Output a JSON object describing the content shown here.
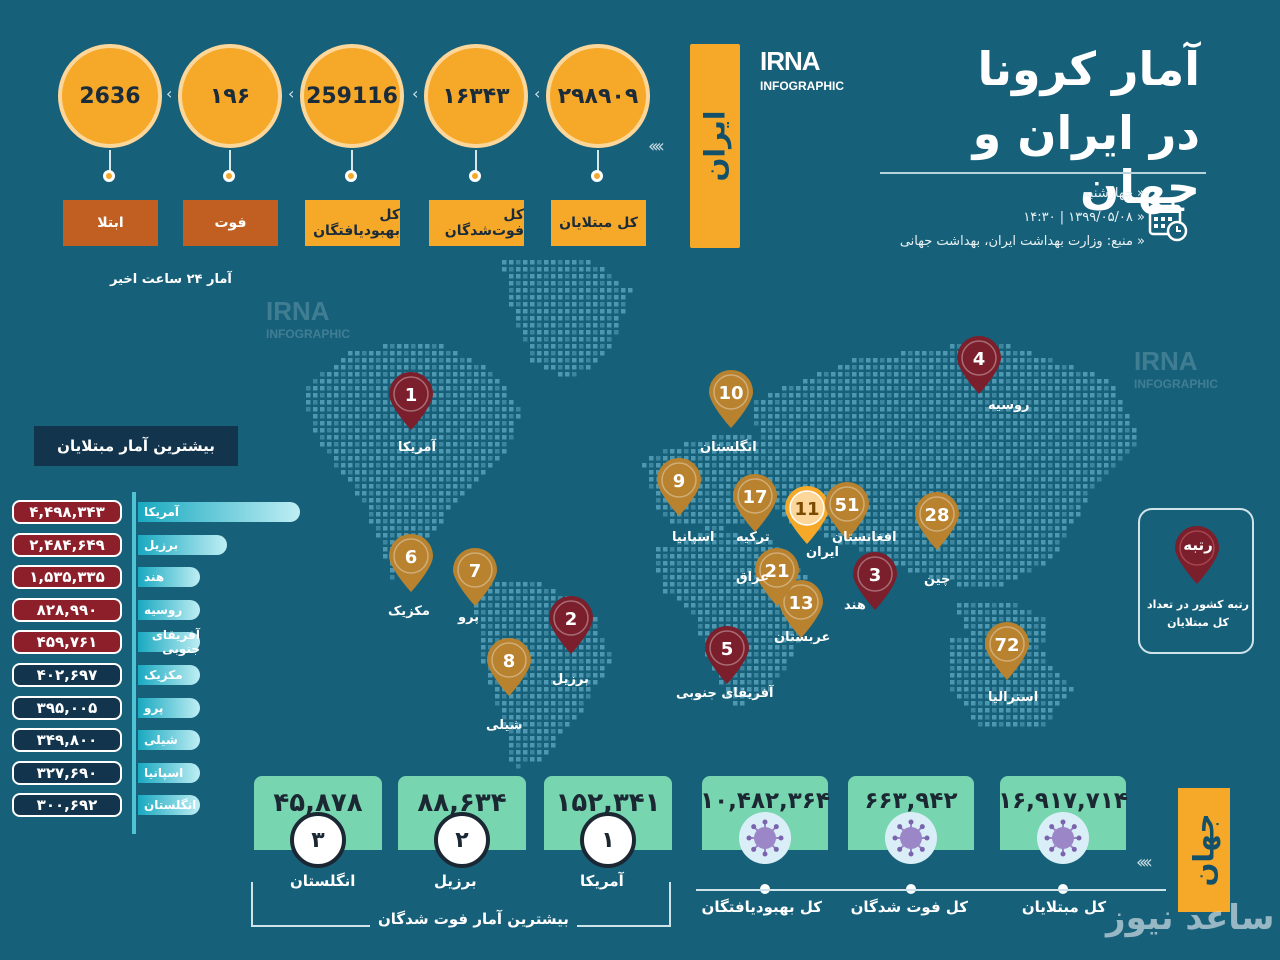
{
  "header": {
    "title_line1": "آمار کرونا",
    "title_line2": "در ایران و جهان",
    "logo": "IRNA",
    "logo_sub": "INFOGRAPHIC",
    "day": "چهارشنبه",
    "datetime": "۱۳۹۹/۰۵/۰۸ | ۱۴:۳۰",
    "source": "منبع: وزارت بهداشت ایران، بهداشت جهانی"
  },
  "iran": {
    "banner": "ایران",
    "stats": [
      {
        "value": "۲۹۸۹۰۹",
        "label": "کل مبتلایان",
        "style": "orange"
      },
      {
        "value": "۱۶۳۴۳",
        "label": "کل فوت‌شدگان",
        "style": "orange"
      },
      {
        "value": "259116",
        "label": "کل بهبودیافتگان",
        "style": "orange"
      },
      {
        "value": "۱۹۶",
        "label": "فوت",
        "style": "brown"
      },
      {
        "value": "2636",
        "label": "ابتلا",
        "style": "brown"
      }
    ],
    "last24": "آمار ۲۴ ساعت اخیر"
  },
  "map_pins": [
    {
      "rank": "1",
      "name": "آمریکا",
      "color": "#7a1f2b"
    },
    {
      "rank": "2",
      "name": "برزیل",
      "color": "#7a1f2b"
    },
    {
      "rank": "3",
      "name": "هند",
      "color": "#7a1f2b"
    },
    {
      "rank": "4",
      "name": "روسیه",
      "color": "#7a1f2b"
    },
    {
      "rank": "5",
      "name": "آفریقای جنوبی",
      "color": "#7a1f2b"
    },
    {
      "rank": "6",
      "name": "مکزیک",
      "color": "#b8822f"
    },
    {
      "rank": "7",
      "name": "پرو",
      "color": "#b8822f"
    },
    {
      "rank": "8",
      "name": "شیلی",
      "color": "#b8822f"
    },
    {
      "rank": "9",
      "name": "اسپانیا",
      "color": "#b8822f"
    },
    {
      "rank": "10",
      "name": "انگلستان",
      "color": "#b8822f"
    },
    {
      "rank": "11",
      "name": "ایران",
      "color": "#f6a829"
    },
    {
      "rank": "13",
      "name": "عربستان",
      "color": "#b8822f"
    },
    {
      "rank": "17",
      "name": "ترکیه",
      "color": "#b8822f"
    },
    {
      "rank": "21",
      "name": "عراق",
      "color": "#b8822f"
    },
    {
      "rank": "28",
      "name": "چین",
      "color": "#b8822f"
    },
    {
      "rank": "51",
      "name": "افغانستان",
      "color": "#b8822f"
    },
    {
      "rank": "72",
      "name": "استرالیا",
      "color": "#b8822f"
    }
  ],
  "rank_legend": {
    "title": "رتبه",
    "desc": "رتبه کشور در تعداد کل مبتلایان"
  },
  "top_infected": {
    "title": "بیشترین آمار مبتلایان",
    "rows": [
      {
        "country": "آمریکا",
        "value": "۴,۴۹۸,۳۴۳",
        "color": "#8c1f2a",
        "fill": 1.0
      },
      {
        "country": "برزیل",
        "value": "۲,۴۸۴,۶۴۹",
        "color": "#8c1f2a",
        "fill": 0.55
      },
      {
        "country": "هند",
        "value": "۱,۵۳۵,۳۳۵",
        "color": "#8c1f2a",
        "fill": 0.34
      },
      {
        "country": "روسیه",
        "value": "۸۲۸,۹۹۰",
        "color": "#8c1f2a",
        "fill": 0.18
      },
      {
        "country": "آفریقای جنوبی",
        "value": "۴۵۹,۷۶۱",
        "color": "#8c1f2a",
        "fill": 0.1
      },
      {
        "country": "مکزیک",
        "value": "۴۰۲,۶۹۷",
        "color": "#13344d",
        "fill": 0.09
      },
      {
        "country": "پرو",
        "value": "۳۹۵,۰۰۵",
        "color": "#13344d",
        "fill": 0.088
      },
      {
        "country": "شیلی",
        "value": "۳۴۹,۸۰۰",
        "color": "#13344d",
        "fill": 0.078
      },
      {
        "country": "اسپانیا",
        "value": "۳۲۷,۶۹۰",
        "color": "#13344d",
        "fill": 0.073
      },
      {
        "country": "انگلستان",
        "value": "۳۰۰,۶۹۲",
        "color": "#13344d",
        "fill": 0.067
      }
    ]
  },
  "top_deaths": {
    "title": "بیشترین آمار فوت شدگان",
    "items": [
      {
        "rank": "۳",
        "country": "انگلستان",
        "value": "۴۵,۸۷۸"
      },
      {
        "rank": "۲",
        "country": "برزیل",
        "value": "۸۸,۶۳۴"
      },
      {
        "rank": "۱",
        "country": "آمریکا",
        "value": "۱۵۲,۳۴۱"
      }
    ]
  },
  "world": {
    "banner": "جهان",
    "items": [
      {
        "value": "۱۰,۴۸۲,۳۶۴",
        "label": "کل بهبودیافتگان"
      },
      {
        "value": "۶۶۳,۹۴۲",
        "label": "کل فوت شدگان"
      },
      {
        "value": "۱۶,۹۱۷,۷۱۴",
        "label": "کل مبتلایان"
      }
    ]
  },
  "watermark": "ساعد نیوز"
}
